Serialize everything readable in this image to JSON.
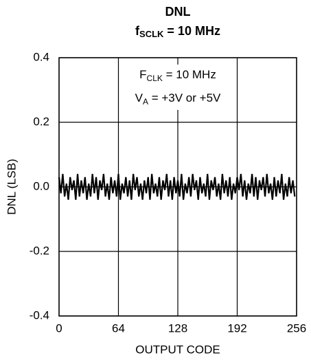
{
  "chart_data": {
    "type": "line",
    "title": "DNL",
    "subtitle": {
      "text": "f",
      "sub": "SCLK",
      "rest": " = 10 MHz"
    },
    "annotations": [
      {
        "text": "F",
        "sub": "CLK",
        "rest": " = 10 MHz"
      },
      {
        "text": "V",
        "sub": "A",
        "rest": " = +3V or +5V"
      }
    ],
    "x_label": "OUTPUT CODE",
    "y_label": "DNL (LSB)",
    "x": [
      0,
      2,
      4,
      6,
      8,
      10,
      12,
      14,
      16,
      18,
      20,
      22,
      24,
      26,
      28,
      30,
      32,
      34,
      36,
      38,
      40,
      42,
      44,
      46,
      48,
      50,
      52,
      54,
      56,
      58,
      60,
      62,
      64,
      66,
      68,
      70,
      72,
      74,
      76,
      78,
      80,
      82,
      84,
      86,
      88,
      90,
      92,
      94,
      96,
      98,
      100,
      102,
      104,
      106,
      108,
      110,
      112,
      114,
      116,
      118,
      120,
      122,
      124,
      126,
      128,
      130,
      132,
      134,
      136,
      138,
      140,
      142,
      144,
      146,
      148,
      150,
      152,
      154,
      156,
      158,
      160,
      162,
      164,
      166,
      168,
      170,
      172,
      174,
      176,
      178,
      180,
      182,
      184,
      186,
      188,
      190,
      192,
      194,
      196,
      198,
      200,
      202,
      204,
      206,
      208,
      210,
      212,
      214,
      216,
      218,
      220,
      222,
      224,
      226,
      228,
      230,
      232,
      234,
      236,
      238,
      240,
      242,
      244,
      246,
      248,
      250,
      252,
      254
    ],
    "values": [
      0.03,
      -0.02,
      0.04,
      -0.03,
      0.01,
      -0.04,
      0.03,
      -0.01,
      0.02,
      -0.04,
      0.04,
      -0.03,
      0.02,
      -0.02,
      0.03,
      -0.04,
      0.01,
      -0.03,
      0.04,
      -0.02,
      0.03,
      -0.04,
      0.02,
      -0.01,
      0.04,
      -0.03,
      0.01,
      -0.04,
      0.03,
      -0.02,
      0.02,
      -0.03,
      0.04,
      -0.04,
      0.01,
      -0.02,
      0.03,
      -0.03,
      0.02,
      -0.04,
      0.04,
      -0.01,
      0.03,
      -0.03,
      0.01,
      -0.04,
      0.02,
      -0.02,
      0.03,
      -0.04,
      0.04,
      -0.02,
      0.01,
      -0.03,
      0.03,
      -0.04,
      0.02,
      -0.01,
      0.04,
      -0.03,
      0.02,
      -0.04,
      0.03,
      -0.02,
      0.02,
      -0.03,
      0.04,
      -0.04,
      0.01,
      -0.02,
      0.03,
      -0.03,
      0.04,
      -0.01,
      0.02,
      -0.04,
      0.03,
      -0.02,
      0.01,
      -0.03,
      0.04,
      -0.04,
      0.02,
      -0.01,
      0.03,
      -0.03,
      0.01,
      -0.04,
      0.04,
      -0.02,
      0.02,
      -0.03,
      0.03,
      -0.04,
      0.01,
      -0.02,
      0.03,
      -0.01,
      0.04,
      -0.03,
      0.02,
      -0.04,
      0.01,
      -0.02,
      0.04,
      -0.03,
      0.03,
      -0.04,
      0.02,
      -0.01,
      0.03,
      -0.03,
      0.04,
      -0.02,
      0.01,
      -0.04,
      0.03,
      -0.03,
      0.02,
      -0.02,
      0.04,
      -0.04,
      0.01,
      -0.03,
      0.03,
      -0.02,
      0.02,
      -0.03
    ],
    "color": "#000000",
    "xlim": [
      0,
      256
    ],
    "xticks": [
      0,
      64,
      128,
      192,
      256
    ],
    "ylim": [
      -0.4,
      0.4
    ],
    "yticks": [
      {
        "value": -0.4,
        "label": "-0.4"
      },
      {
        "value": -0.2,
        "label": "-0.2"
      },
      {
        "value": 0,
        "label": "0.0"
      },
      {
        "value": 0.2,
        "label": "0.2"
      },
      {
        "value": 0.4,
        "label": "0.4"
      }
    ],
    "grid": true
  }
}
